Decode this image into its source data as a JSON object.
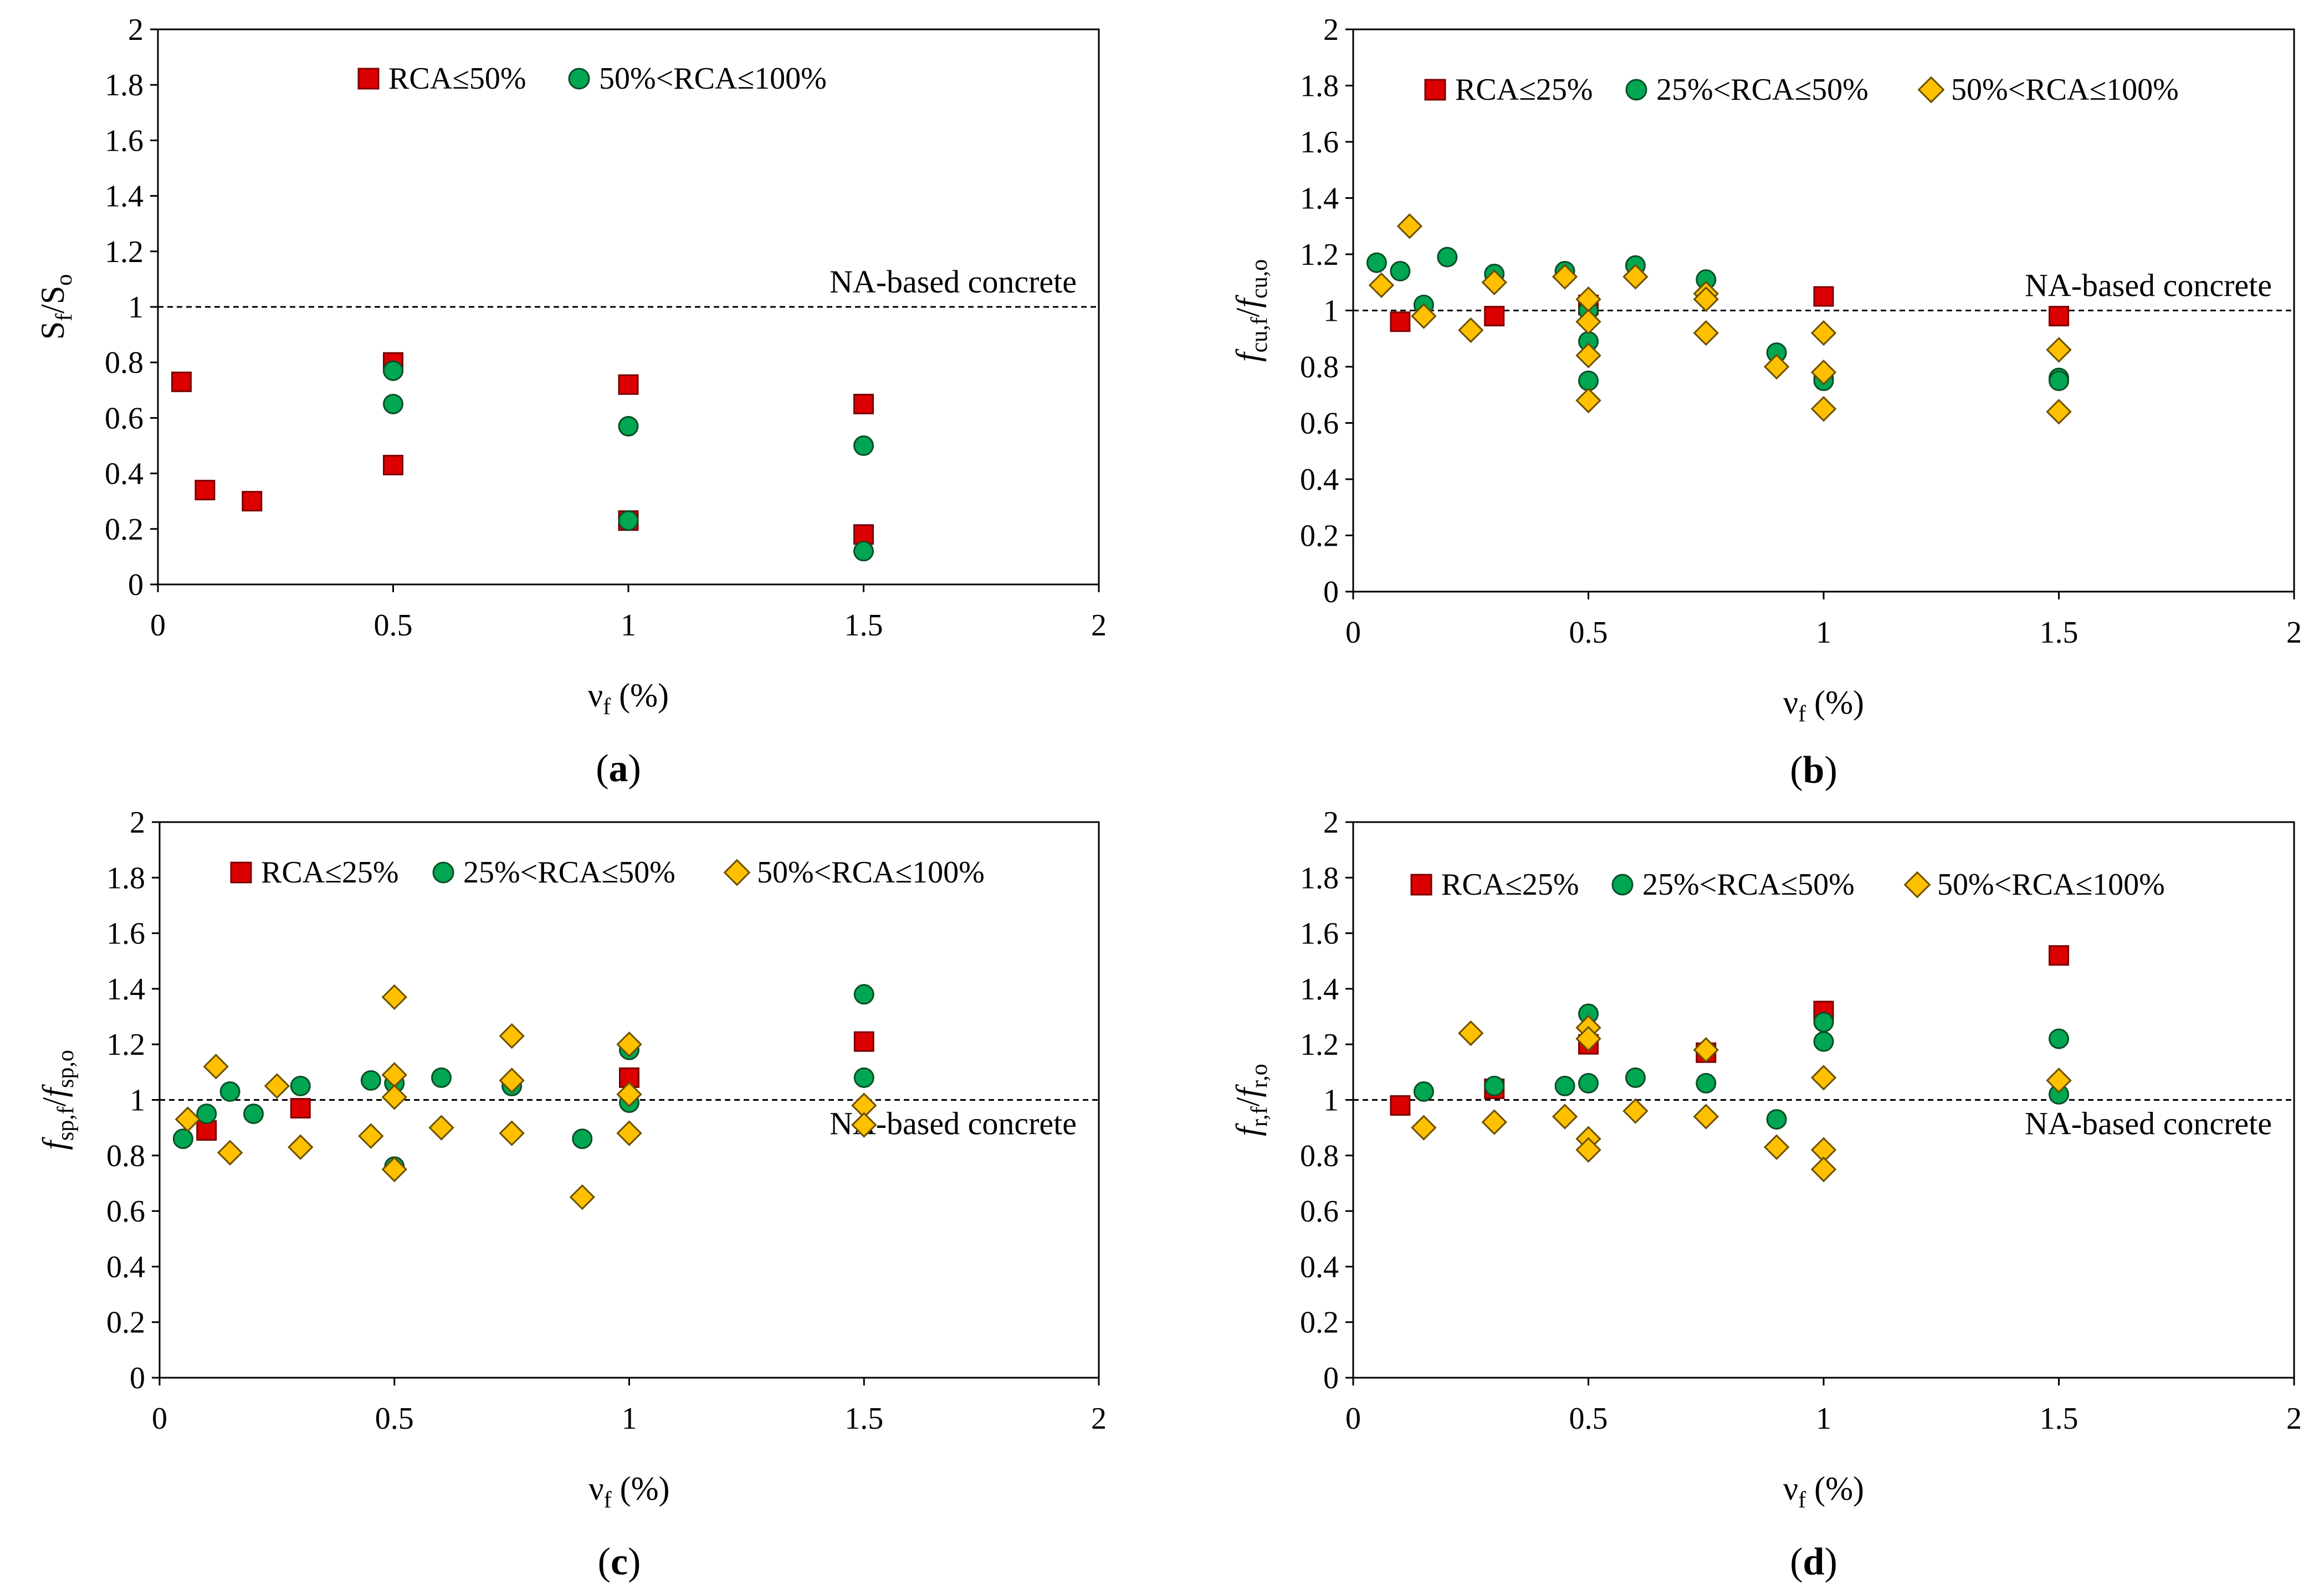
{
  "colors": {
    "series1": "#dd0000",
    "series2": "#00a651",
    "series3": "#ffc000",
    "ref_line": "#000000"
  },
  "marker_shapes": [
    "square",
    "circle",
    "diamond"
  ],
  "chart_data": [
    {
      "id": "a",
      "type": "scatter",
      "panel_label": "a",
      "xlim": [
        0,
        2
      ],
      "ylim": [
        0,
        2
      ],
      "xticks": [
        "0",
        "0.5",
        "1",
        "1.5",
        "2"
      ],
      "yticks": [
        "0",
        "0.2",
        "0.4",
        "0.6",
        "0.8",
        "1",
        "1.2",
        "1.4",
        "1.6",
        "1.8",
        "2"
      ],
      "xlabel": {
        "main": "ν",
        "sub": "f",
        "rest": " (%)"
      },
      "ylabel": {
        "parts": [
          {
            "t": "S",
            "it": false,
            "sub": false
          },
          {
            "t": "f",
            "it": false,
            "sub": true
          },
          {
            "t": "/S",
            "it": false,
            "sub": false
          },
          {
            "t": "o",
            "it": false,
            "sub": true
          }
        ]
      },
      "reference_line": {
        "y": 1,
        "label": "NA-based concrete",
        "label_pos": "above-right"
      },
      "legend_pos": "top",
      "grid": false,
      "series": [
        {
          "name": "RCA≤50%",
          "marker": "square",
          "color": "#dd0000",
          "points": [
            [
              0.05,
              0.73
            ],
            [
              0.1,
              0.34
            ],
            [
              0.2,
              0.3
            ],
            [
              0.5,
              0.8
            ],
            [
              0.5,
              0.43
            ],
            [
              1,
              0.72
            ],
            [
              1,
              0.23
            ],
            [
              1.5,
              0.65
            ],
            [
              1.5,
              0.18
            ]
          ]
        },
        {
          "name": "50%<RCA≤100%",
          "marker": "circle",
          "color": "#00a651",
          "points": [
            [
              0.5,
              0.77
            ],
            [
              0.5,
              0.65
            ],
            [
              1,
              0.57
            ],
            [
              1,
              0.23
            ],
            [
              1.5,
              0.5
            ],
            [
              1.5,
              0.12
            ]
          ]
        }
      ]
    },
    {
      "id": "b",
      "type": "scatter",
      "panel_label": "b",
      "xlim": [
        0,
        2
      ],
      "ylim": [
        0,
        2
      ],
      "xticks": [
        "0",
        "0.5",
        "1",
        "1.5",
        "2"
      ],
      "yticks": [
        "0",
        "0.2",
        "0.4",
        "0.6",
        "0.8",
        "1",
        "1.2",
        "1.4",
        "1.6",
        "1.8",
        "2"
      ],
      "xlabel": {
        "main": "ν",
        "sub": "f",
        "rest": " (%)"
      },
      "ylabel": {
        "parts": [
          {
            "t": "f",
            "it": true,
            "sub": false
          },
          {
            "t": "cu,f",
            "it": false,
            "sub": true
          },
          {
            "t": "/",
            "it": false,
            "sub": false
          },
          {
            "t": "f",
            "it": true,
            "sub": false
          },
          {
            "t": "cu,o",
            "it": false,
            "sub": true
          }
        ]
      },
      "reference_line": {
        "y": 1,
        "label": "NA-based concrete",
        "label_pos": "above-right"
      },
      "legend_pos": "top",
      "grid": false,
      "series": [
        {
          "name": "RCA≤25%",
          "marker": "square",
          "color": "#dd0000",
          "points": [
            [
              0.1,
              0.96
            ],
            [
              0.3,
              0.98
            ],
            [
              0.5,
              1.02
            ],
            [
              1,
              1.05
            ],
            [
              1.5,
              0.98
            ]
          ]
        },
        {
          "name": "25%<RCA≤50%",
          "marker": "circle",
          "color": "#00a651",
          "points": [
            [
              0.05,
              1.17
            ],
            [
              0.1,
              1.14
            ],
            [
              0.15,
              1.02
            ],
            [
              0.2,
              1.19
            ],
            [
              0.3,
              1.13
            ],
            [
              0.45,
              1.14
            ],
            [
              0.5,
              1.0
            ],
            [
              0.5,
              0.89
            ],
            [
              0.5,
              0.75
            ],
            [
              0.6,
              1.16
            ],
            [
              0.75,
              1.11
            ],
            [
              0.75,
              1.05
            ],
            [
              0.9,
              0.85
            ],
            [
              1,
              0.76
            ],
            [
              1,
              0.75
            ],
            [
              1.5,
              0.76
            ],
            [
              1.5,
              0.75
            ]
          ]
        },
        {
          "name": "50%<RCA≤100%",
          "marker": "diamond",
          "color": "#ffc000",
          "points": [
            [
              0.06,
              1.09
            ],
            [
              0.12,
              1.3
            ],
            [
              0.15,
              0.98
            ],
            [
              0.25,
              0.93
            ],
            [
              0.3,
              1.1
            ],
            [
              0.45,
              1.12
            ],
            [
              0.5,
              1.04
            ],
            [
              0.5,
              0.96
            ],
            [
              0.5,
              0.84
            ],
            [
              0.5,
              0.68
            ],
            [
              0.6,
              1.12
            ],
            [
              0.75,
              1.06
            ],
            [
              0.75,
              1.04
            ],
            [
              0.75,
              0.92
            ],
            [
              0.9,
              0.8
            ],
            [
              1,
              0.92
            ],
            [
              1,
              0.78
            ],
            [
              1,
              0.65
            ],
            [
              1.5,
              0.86
            ],
            [
              1.5,
              0.64
            ]
          ]
        }
      ]
    },
    {
      "id": "c",
      "type": "scatter",
      "panel_label": "c",
      "xlim": [
        0,
        2
      ],
      "ylim": [
        0,
        2
      ],
      "xticks": [
        "0",
        "0.5",
        "1",
        "1.5",
        "2"
      ],
      "yticks": [
        "0",
        "0.2",
        "0.4",
        "0.6",
        "0.8",
        "1",
        "1.2",
        "1.4",
        "1.6",
        "1.8",
        "2"
      ],
      "xlabel": {
        "main": "ν",
        "sub": "f",
        "rest": " (%)"
      },
      "ylabel": {
        "parts": [
          {
            "t": "f",
            "it": true,
            "sub": false
          },
          {
            "t": "sp,f",
            "it": false,
            "sub": true
          },
          {
            "t": "/",
            "it": false,
            "sub": false
          },
          {
            "t": "f",
            "it": true,
            "sub": false
          },
          {
            "t": "sp,o",
            "it": false,
            "sub": true
          }
        ]
      },
      "reference_line": {
        "y": 1,
        "label": "NA-based concrete",
        "label_pos": "below-right"
      },
      "legend_pos": "top",
      "grid": false,
      "series": [
        {
          "name": "RCA≤25%",
          "marker": "square",
          "color": "#dd0000",
          "points": [
            [
              0.1,
              0.89
            ],
            [
              0.3,
              0.97
            ],
            [
              1,
              1.08
            ],
            [
              1.5,
              1.21
            ]
          ]
        },
        {
          "name": "25%<RCA≤50%",
          "marker": "circle",
          "color": "#00a651",
          "points": [
            [
              0.05,
              0.86
            ],
            [
              0.1,
              0.95
            ],
            [
              0.15,
              1.03
            ],
            [
              0.2,
              0.95
            ],
            [
              0.3,
              1.05
            ],
            [
              0.45,
              1.07
            ],
            [
              0.5,
              1.06
            ],
            [
              0.5,
              0.76
            ],
            [
              0.6,
              1.08
            ],
            [
              0.75,
              1.05
            ],
            [
              0.9,
              0.86
            ],
            [
              1,
              1.18
            ],
            [
              1,
              0.99
            ],
            [
              1.5,
              1.38
            ],
            [
              1.5,
              1.08
            ]
          ]
        },
        {
          "name": "50%<RCA≤100%",
          "marker": "diamond",
          "color": "#ffc000",
          "points": [
            [
              0.06,
              0.93
            ],
            [
              0.12,
              1.12
            ],
            [
              0.15,
              0.81
            ],
            [
              0.25,
              1.05
            ],
            [
              0.3,
              0.83
            ],
            [
              0.45,
              0.87
            ],
            [
              0.5,
              1.37
            ],
            [
              0.5,
              1.09
            ],
            [
              0.5,
              1.01
            ],
            [
              0.5,
              0.75
            ],
            [
              0.6,
              0.9
            ],
            [
              0.75,
              1.23
            ],
            [
              0.75,
              1.07
            ],
            [
              0.75,
              0.88
            ],
            [
              0.9,
              0.65
            ],
            [
              1,
              1.2
            ],
            [
              1,
              1.02
            ],
            [
              1,
              0.88
            ],
            [
              1.5,
              0.98
            ],
            [
              1.5,
              0.91
            ]
          ]
        }
      ]
    },
    {
      "id": "d",
      "type": "scatter",
      "panel_label": "d",
      "xlim": [
        0,
        2
      ],
      "ylim": [
        0,
        2
      ],
      "xticks": [
        "0",
        "0.5",
        "1",
        "1.5",
        "2"
      ],
      "yticks": [
        "0",
        "0.2",
        "0.4",
        "0.6",
        "0.8",
        "1",
        "1.2",
        "1.4",
        "1.6",
        "1.8",
        "2"
      ],
      "xlabel": {
        "main": "ν",
        "sub": "f",
        "rest": " (%)"
      },
      "ylabel": {
        "parts": [
          {
            "t": "f",
            "it": true,
            "sub": false
          },
          {
            "t": "r,f",
            "it": false,
            "sub": true
          },
          {
            "t": "/",
            "it": false,
            "sub": false
          },
          {
            "t": "f",
            "it": true,
            "sub": false
          },
          {
            "t": "r,o",
            "it": false,
            "sub": true
          }
        ]
      },
      "reference_line": {
        "y": 1,
        "label": "NA-based concrete",
        "label_pos": "below-right"
      },
      "legend_pos": "top",
      "grid": false,
      "series": [
        {
          "name": "RCA≤25%",
          "marker": "square",
          "color": "#dd0000",
          "points": [
            [
              0.1,
              0.98
            ],
            [
              0.3,
              1.04
            ],
            [
              0.5,
              1.2
            ],
            [
              0.75,
              1.17
            ],
            [
              1,
              1.32
            ],
            [
              1.5,
              1.52
            ]
          ]
        },
        {
          "name": "25%<RCA≤50%",
          "marker": "circle",
          "color": "#00a651",
          "points": [
            [
              0.15,
              1.03
            ],
            [
              0.3,
              1.05
            ],
            [
              0.45,
              1.05
            ],
            [
              0.5,
              1.31
            ],
            [
              0.5,
              1.06
            ],
            [
              0.6,
              1.08
            ],
            [
              0.75,
              1.06
            ],
            [
              0.9,
              0.93
            ],
            [
              1,
              1.28
            ],
            [
              1,
              1.21
            ],
            [
              1.5,
              1.22
            ],
            [
              1.5,
              1.02
            ]
          ]
        },
        {
          "name": "50%<RCA≤100%",
          "marker": "diamond",
          "color": "#ffc000",
          "points": [
            [
              0.15,
              0.9
            ],
            [
              0.25,
              1.24
            ],
            [
              0.3,
              0.92
            ],
            [
              0.45,
              0.94
            ],
            [
              0.5,
              1.26
            ],
            [
              0.5,
              1.22
            ],
            [
              0.5,
              0.86
            ],
            [
              0.5,
              0.82
            ],
            [
              0.6,
              0.96
            ],
            [
              0.75,
              1.18
            ],
            [
              0.75,
              0.94
            ],
            [
              0.9,
              0.83
            ],
            [
              1,
              1.08
            ],
            [
              1,
              0.82
            ],
            [
              1,
              0.75
            ],
            [
              1.5,
              1.07
            ]
          ]
        }
      ]
    }
  ]
}
